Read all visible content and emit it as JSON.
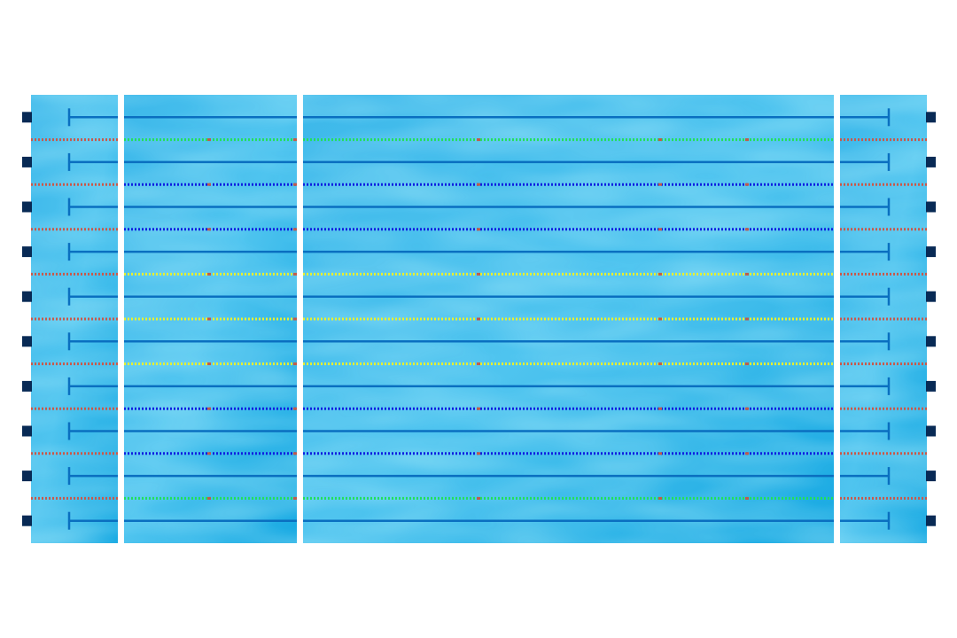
{
  "pool": {
    "lane_count": 10,
    "sections": [
      "left-end",
      "left-mid",
      "center",
      "right-end"
    ],
    "colors": {
      "background": "#ffffff",
      "water_light": "#5ccbf0",
      "water_mid": "#3db8ea",
      "water_dark": "#12a6e0",
      "lane_line": "#0a6fc0",
      "block": "#082a55",
      "divider": "#ffffff"
    },
    "lane_ropes": [
      {
        "rope": 1,
        "color": "#22e05a",
        "end_color": "#c9584a"
      },
      {
        "rope": 2,
        "color": "#1020e0",
        "end_color": "#c9584a"
      },
      {
        "rope": 3,
        "color": "#1020e0",
        "end_color": "#c9584a"
      },
      {
        "rope": 4,
        "color": "#e8f030",
        "end_color": "#c9584a"
      },
      {
        "rope": 5,
        "color": "#e8f030",
        "end_color": "#c9584a"
      },
      {
        "rope": 6,
        "color": "#e8f030",
        "end_color": "#c9584a"
      },
      {
        "rope": 7,
        "color": "#1020e0",
        "end_color": "#c9584a"
      },
      {
        "rope": 8,
        "color": "#1020e0",
        "end_color": "#c9584a"
      },
      {
        "rope": 9,
        "color": "#22e05a",
        "end_color": "#c9584a"
      }
    ],
    "rope_marker_color": "#c05a4a"
  }
}
